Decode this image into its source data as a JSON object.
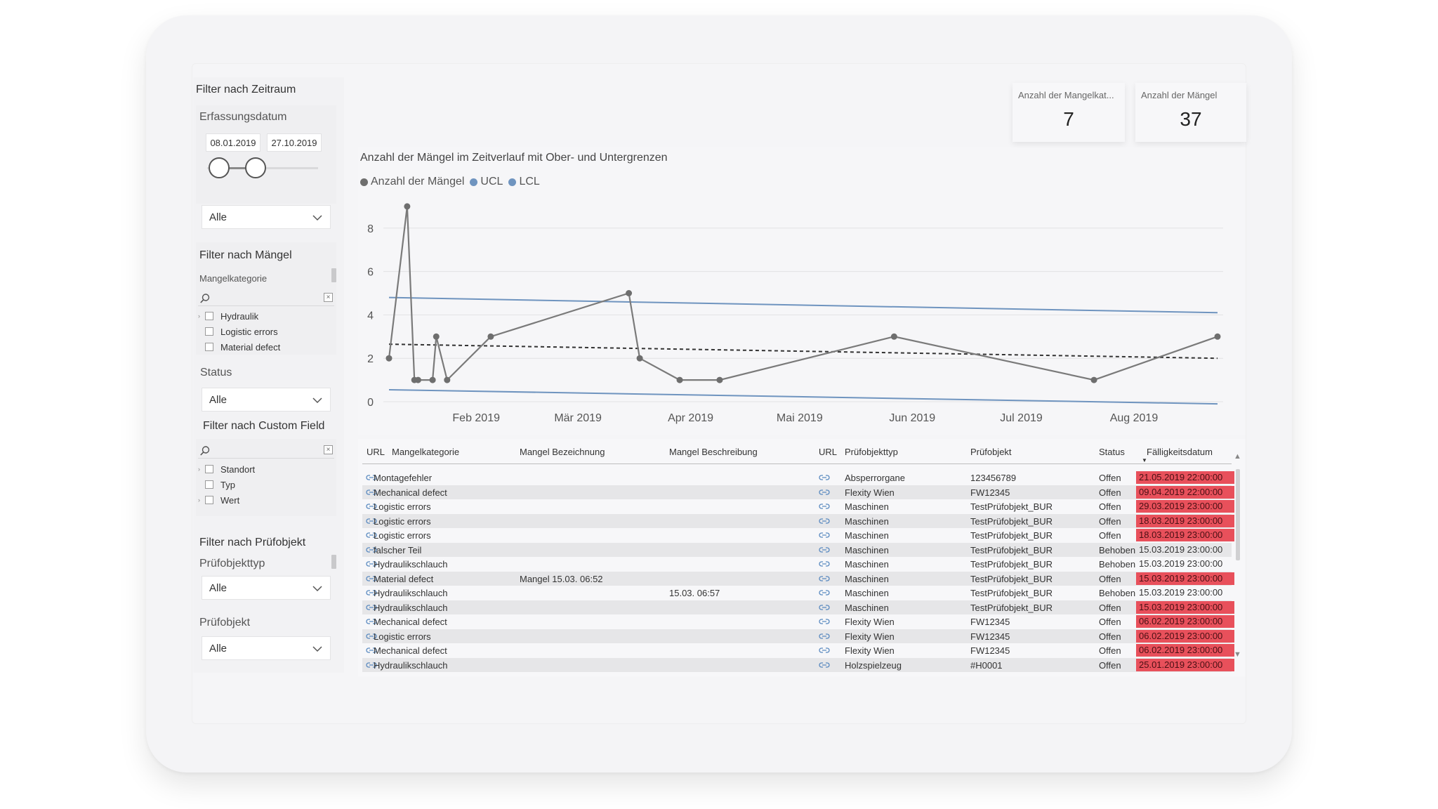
{
  "filters": {
    "period_heading": "Filter nach Zeitraum",
    "capture_date_label": "Erfassungsdatum",
    "date_from": "08.01.2019",
    "date_to": "27.10.2019",
    "period_select": "Alle",
    "defects_heading": "Filter nach Mängel",
    "category_label": "Mangelkategorie",
    "categories": [
      "Hydraulik",
      "Logistic errors",
      "Material defect"
    ],
    "status_label": "Status",
    "status_select": "Alle",
    "custom_heading": "Filter nach Custom Field",
    "custom_fields": [
      "Standort",
      "Typ",
      "Wert"
    ],
    "object_heading": "Filter nach Prüfobjekt",
    "object_type_label": "Prüfobjekttyp",
    "object_type_select": "Alle",
    "object_label": "Prüfobjekt",
    "object_select": "Alle",
    "clear_glyph": "×"
  },
  "kpis": [
    {
      "label": "Anzahl der Mangelkat...",
      "value": "7"
    },
    {
      "label": "Anzahl der Mängel",
      "value": "37"
    }
  ],
  "chart_data": {
    "type": "line",
    "title": "Anzahl der Mängel im Zeitverlauf mit Ober- und Untergrenzen",
    "legend": [
      "Anzahl der Mängel",
      "UCL",
      "LCL"
    ],
    "colors": {
      "series": "#7a7a7a",
      "ucl": "#6f94bf",
      "lcl": "#6f94bf",
      "mean": "#333333",
      "grid": "#e2e2e4"
    },
    "x_ticks": [
      "Feb 2019",
      "Mär 2019",
      "Apr 2019",
      "Mai 2019",
      "Jun 2019",
      "Jul 2019",
      "Aug 2019"
    ],
    "x_range": [
      "2019-01-08",
      "2019-08-24"
    ],
    "y_ticks": [
      "0",
      "2",
      "4",
      "6",
      "8"
    ],
    "ylim": [
      0,
      9
    ],
    "series": [
      {
        "name": "Anzahl der Mängel",
        "points": [
          {
            "x": "2019-01-08",
            "y": 2
          },
          {
            "x": "2019-01-13",
            "y": 9
          },
          {
            "x": "2019-01-15",
            "y": 1
          },
          {
            "x": "2019-01-16",
            "y": 1
          },
          {
            "x": "2019-01-20",
            "y": 1
          },
          {
            "x": "2019-01-21",
            "y": 3
          },
          {
            "x": "2019-01-24",
            "y": 1
          },
          {
            "x": "2019-02-05",
            "y": 3
          },
          {
            "x": "2019-03-15",
            "y": 5
          },
          {
            "x": "2019-03-18",
            "y": 2
          },
          {
            "x": "2019-03-29",
            "y": 1
          },
          {
            "x": "2019-04-09",
            "y": 1
          },
          {
            "x": "2019-05-27",
            "y": 3
          },
          {
            "x": "2019-07-21",
            "y": 1
          },
          {
            "x": "2019-08-24",
            "y": 3
          }
        ]
      }
    ],
    "ucl": [
      {
        "x": "2019-01-08",
        "y": 4.8
      },
      {
        "x": "2019-08-24",
        "y": 4.1
      }
    ],
    "lcl": [
      {
        "x": "2019-01-08",
        "y": 0.55
      },
      {
        "x": "2019-08-24",
        "y": -0.1
      }
    ],
    "mean": [
      {
        "x": "2019-01-08",
        "y": 2.65
      },
      {
        "x": "2019-08-24",
        "y": 2.0
      }
    ]
  },
  "table": {
    "headers": [
      "URL",
      "Mangelkategorie",
      "Mangel Bezeichnung",
      "Mangel Beschreibung",
      "URL",
      "Prüfobjekttyp",
      "Prüfobjekt",
      "Status",
      "Fälligkeitsdatum"
    ],
    "rows": [
      {
        "kategorie": "Montagefehler",
        "bezeichnung": "",
        "beschreibung": "",
        "typ": "Absperrorgane",
        "objekt": "123456789",
        "status": "Offen",
        "faellig": "21.05.2019 22:00:00",
        "overdue": true
      },
      {
        "kategorie": "Mechanical defect",
        "bezeichnung": "",
        "beschreibung": "",
        "typ": "Flexity Wien",
        "objekt": "FW12345",
        "status": "Offen",
        "faellig": "09.04.2019 22:00:00",
        "overdue": true
      },
      {
        "kategorie": "Logistic errors",
        "bezeichnung": "",
        "beschreibung": "",
        "typ": "Maschinen",
        "objekt": "TestPrüfobjekt_BUR",
        "status": "Offen",
        "faellig": "29.03.2019 23:00:00",
        "overdue": true
      },
      {
        "kategorie": "Logistic errors",
        "bezeichnung": "",
        "beschreibung": "",
        "typ": "Maschinen",
        "objekt": "TestPrüfobjekt_BUR",
        "status": "Offen",
        "faellig": "18.03.2019 23:00:00",
        "overdue": true
      },
      {
        "kategorie": "Logistic errors",
        "bezeichnung": "",
        "beschreibung": "",
        "typ": "Maschinen",
        "objekt": "TestPrüfobjekt_BUR",
        "status": "Offen",
        "faellig": "18.03.2019 23:00:00",
        "overdue": true
      },
      {
        "kategorie": "falscher Teil",
        "bezeichnung": "",
        "beschreibung": "",
        "typ": "Maschinen",
        "objekt": "TestPrüfobjekt_BUR",
        "status": "Behoben",
        "faellig": "15.03.2019 23:00:00",
        "overdue": false
      },
      {
        "kategorie": "Hydraulikschlauch",
        "bezeichnung": "",
        "beschreibung": "",
        "typ": "Maschinen",
        "objekt": "TestPrüfobjekt_BUR",
        "status": "Behoben",
        "faellig": "15.03.2019 23:00:00",
        "overdue": false
      },
      {
        "kategorie": "Material defect",
        "bezeichnung": "Mangel 15.03. 06:52",
        "beschreibung": "",
        "typ": "Maschinen",
        "objekt": "TestPrüfobjekt_BUR",
        "status": "Offen",
        "faellig": "15.03.2019 23:00:00",
        "overdue": true
      },
      {
        "kategorie": "Hydraulikschlauch",
        "bezeichnung": "",
        "beschreibung": "15.03. 06:57",
        "typ": "Maschinen",
        "objekt": "TestPrüfobjekt_BUR",
        "status": "Behoben",
        "faellig": "15.03.2019 23:00:00",
        "overdue": false
      },
      {
        "kategorie": "Hydraulikschlauch",
        "bezeichnung": "",
        "beschreibung": "",
        "typ": "Maschinen",
        "objekt": "TestPrüfobjekt_BUR",
        "status": "Offen",
        "faellig": "15.03.2019 23:00:00",
        "overdue": true
      },
      {
        "kategorie": "Mechanical defect",
        "bezeichnung": "",
        "beschreibung": "",
        "typ": "Flexity Wien",
        "objekt": "FW12345",
        "status": "Offen",
        "faellig": "06.02.2019 23:00:00",
        "overdue": true
      },
      {
        "kategorie": "Logistic errors",
        "bezeichnung": "",
        "beschreibung": "",
        "typ": "Flexity Wien",
        "objekt": "FW12345",
        "status": "Offen",
        "faellig": "06.02.2019 23:00:00",
        "overdue": true
      },
      {
        "kategorie": "Mechanical defect",
        "bezeichnung": "",
        "beschreibung": "",
        "typ": "Flexity Wien",
        "objekt": "FW12345",
        "status": "Offen",
        "faellig": "06.02.2019 23:00:00",
        "overdue": true
      },
      {
        "kategorie": "Hydraulikschlauch",
        "bezeichnung": "",
        "beschreibung": "",
        "typ": "Holzspielzeug",
        "objekt": "#H0001",
        "status": "Offen",
        "faellig": "25.01.2019 23:00:00",
        "overdue": true
      }
    ],
    "overdue_color": "#e8505b",
    "icons": [
      "link-icon",
      "sort-descending-icon",
      "scroll-up-icon",
      "scroll-down-icon"
    ]
  }
}
